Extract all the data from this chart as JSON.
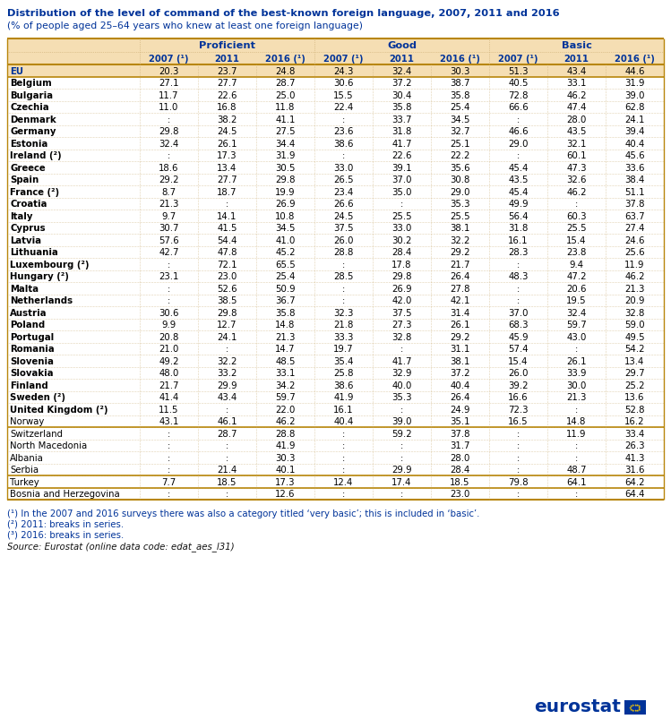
{
  "title": "Distribution of the level of command of the best-known foreign language, 2007, 2011 and 2016",
  "subtitle": "(% of people aged 25–64 years who knew at least one foreign language)",
  "header_groups": [
    "Proficient",
    "Good",
    "Basic"
  ],
  "subheaders": [
    "2007 (¹)",
    "2011",
    "2016 (¹)",
    "2007 (¹)",
    "2011",
    "2016 (¹)",
    "2007 (¹)",
    "2011",
    "2016 (¹)"
  ],
  "rows": [
    [
      "EU",
      "20.3",
      "23.7",
      "24.8",
      "24.3",
      "32.4",
      "30.3",
      "51.3",
      "43.4",
      "44.6"
    ],
    [
      "Belgium",
      "27.1",
      "27.7",
      "28.7",
      "30.6",
      "37.2",
      "38.7",
      "40.5",
      "33.1",
      "31.9"
    ],
    [
      "Bulgaria",
      "11.7",
      "22.6",
      "25.0",
      "15.5",
      "30.4",
      "35.8",
      "72.8",
      "46.2",
      "39.0"
    ],
    [
      "Czechia",
      "11.0",
      "16.8",
      "11.8",
      "22.4",
      "35.8",
      "25.4",
      "66.6",
      "47.4",
      "62.8"
    ],
    [
      "Denmark",
      ":",
      "38.2",
      "41.1",
      ":",
      "33.7",
      "34.5",
      ":",
      "28.0",
      "24.1"
    ],
    [
      "Germany",
      "29.8",
      "24.5",
      "27.5",
      "23.6",
      "31.8",
      "32.7",
      "46.6",
      "43.5",
      "39.4"
    ],
    [
      "Estonia",
      "32.4",
      "26.1",
      "34.4",
      "38.6",
      "41.7",
      "25.1",
      "29.0",
      "32.1",
      "40.4"
    ],
    [
      "Ireland (²)",
      ":",
      "17.3",
      "31.9",
      ":",
      "22.6",
      "22.2",
      ":",
      "60.1",
      "45.6"
    ],
    [
      "Greece",
      "18.6",
      "13.4",
      "30.5",
      "33.0",
      "39.1",
      "35.6",
      "45.4",
      "47.3",
      "33.6"
    ],
    [
      "Spain",
      "29.2",
      "27.7",
      "29.8",
      "26.5",
      "37.0",
      "30.8",
      "43.5",
      "32.6",
      "38.4"
    ],
    [
      "France (²)",
      "8.7",
      "18.7",
      "19.9",
      "23.4",
      "35.0",
      "29.0",
      "45.4",
      "46.2",
      "51.1"
    ],
    [
      "Croatia",
      "21.3",
      ":",
      "26.9",
      "26.6",
      ":",
      "35.3",
      "49.9",
      ":",
      "37.8"
    ],
    [
      "Italy",
      "9.7",
      "14.1",
      "10.8",
      "24.5",
      "25.5",
      "25.5",
      "56.4",
      "60.3",
      "63.7"
    ],
    [
      "Cyprus",
      "30.7",
      "41.5",
      "34.5",
      "37.5",
      "33.0",
      "38.1",
      "31.8",
      "25.5",
      "27.4"
    ],
    [
      "Latvia",
      "57.6",
      "54.4",
      "41.0",
      "26.0",
      "30.2",
      "32.2",
      "16.1",
      "15.4",
      "24.6"
    ],
    [
      "Lithuania",
      "42.7",
      "47.8",
      "45.2",
      "28.8",
      "28.4",
      "29.2",
      "28.3",
      "23.8",
      "25.6"
    ],
    [
      "Luxembourg (²)",
      ":",
      "72.1",
      "65.5",
      ":",
      "17.8",
      "21.7",
      ":",
      "9.4",
      "11.9"
    ],
    [
      "Hungary (²)",
      "23.1",
      "23.0",
      "25.4",
      "28.5",
      "29.8",
      "26.4",
      "48.3",
      "47.2",
      "46.2"
    ],
    [
      "Malta",
      ":",
      "52.6",
      "50.9",
      ":",
      "26.9",
      "27.8",
      ":",
      "20.6",
      "21.3"
    ],
    [
      "Netherlands",
      ":",
      "38.5",
      "36.7",
      ":",
      "42.0",
      "42.1",
      ":",
      "19.5",
      "20.9"
    ],
    [
      "Austria",
      "30.6",
      "29.8",
      "35.8",
      "32.3",
      "37.5",
      "31.4",
      "37.0",
      "32.4",
      "32.8"
    ],
    [
      "Poland",
      "9.9",
      "12.7",
      "14.8",
      "21.8",
      "27.3",
      "26.1",
      "68.3",
      "59.7",
      "59.0"
    ],
    [
      "Portugal",
      "20.8",
      "24.1",
      "21.3",
      "33.3",
      "32.8",
      "29.2",
      "45.9",
      "43.0",
      "49.5"
    ],
    [
      "Romania",
      "21.0",
      ":",
      "14.7",
      "19.7",
      ":",
      "31.1",
      "57.4",
      ":",
      "54.2"
    ],
    [
      "Slovenia",
      "49.2",
      "32.2",
      "48.5",
      "35.4",
      "41.7",
      "38.1",
      "15.4",
      "26.1",
      "13.4"
    ],
    [
      "Slovakia",
      "48.0",
      "33.2",
      "33.1",
      "25.8",
      "32.9",
      "37.2",
      "26.0",
      "33.9",
      "29.7"
    ],
    [
      "Finland",
      "21.7",
      "29.9",
      "34.2",
      "38.6",
      "40.0",
      "40.4",
      "39.2",
      "30.0",
      "25.2"
    ],
    [
      "Sweden (²)",
      "41.4",
      "43.4",
      "59.7",
      "41.9",
      "35.3",
      "26.4",
      "16.6",
      "21.3",
      "13.6"
    ],
    [
      "United Kingdom (²)",
      "11.5",
      ":",
      "22.0",
      "16.1",
      ":",
      "24.9",
      "72.3",
      ":",
      "52.8"
    ],
    [
      "Norway",
      "43.1",
      "46.1",
      "46.2",
      "40.4",
      "39.0",
      "35.1",
      "16.5",
      "14.8",
      "16.2"
    ],
    [
      "Switzerland",
      ":",
      "28.7",
      "28.8",
      ":",
      "59.2",
      "37.8",
      ":",
      "11.9",
      "33.4"
    ],
    [
      "North Macedonia",
      ":",
      ":",
      "41.9",
      ":",
      ":",
      "31.7",
      ":",
      ":",
      "26.3"
    ],
    [
      "Albania",
      ":",
      ":",
      "30.3",
      ":",
      ":",
      "28.0",
      ":",
      ":",
      "41.3"
    ],
    [
      "Serbia",
      ":",
      "21.4",
      "40.1",
      ":",
      "29.9",
      "28.4",
      ":",
      "48.7",
      "31.6"
    ],
    [
      "Turkey",
      "7.7",
      "18.5",
      "17.3",
      "12.4",
      "17.4",
      "18.5",
      "79.8",
      "64.1",
      "64.2"
    ],
    [
      "Bosnia and Herzegovina",
      ":",
      ":",
      "12.6",
      ":",
      ":",
      "23.0",
      ":",
      ":",
      "64.4"
    ]
  ],
  "eu_members": [
    "EU",
    "Belgium",
    "Bulgaria",
    "Czechia",
    "Denmark",
    "Germany",
    "Estonia",
    "Ireland (²)",
    "Greece",
    "Spain",
    "France (²)",
    "Croatia",
    "Italy",
    "Cyprus",
    "Latvia",
    "Lithuania",
    "Luxembourg (²)",
    "Hungary (²)",
    "Malta",
    "Netherlands",
    "Austria",
    "Poland",
    "Portugal",
    "Romania",
    "Slovenia",
    "Slovakia",
    "Finland",
    "Sweden (²)",
    "United Kingdom (²)"
  ],
  "footnotes": [
    "(¹) In the 2007 and 2016 surveys there was also a category titled ‘very basic’; this is included in ‘basic’.",
    "(²) 2011: breaks in series.",
    "(³) 2016: breaks in series.",
    "Source: Eurostat (online data code: edat_aes_l31)"
  ],
  "header_bg": "#f5deb3",
  "eu_row_bg": "#f5deb3",
  "header_color": "#003399",
  "title_color": "#003399",
  "text_color": "#000000",
  "border_color": "#c8a96e",
  "thick_border": "#b8860b"
}
